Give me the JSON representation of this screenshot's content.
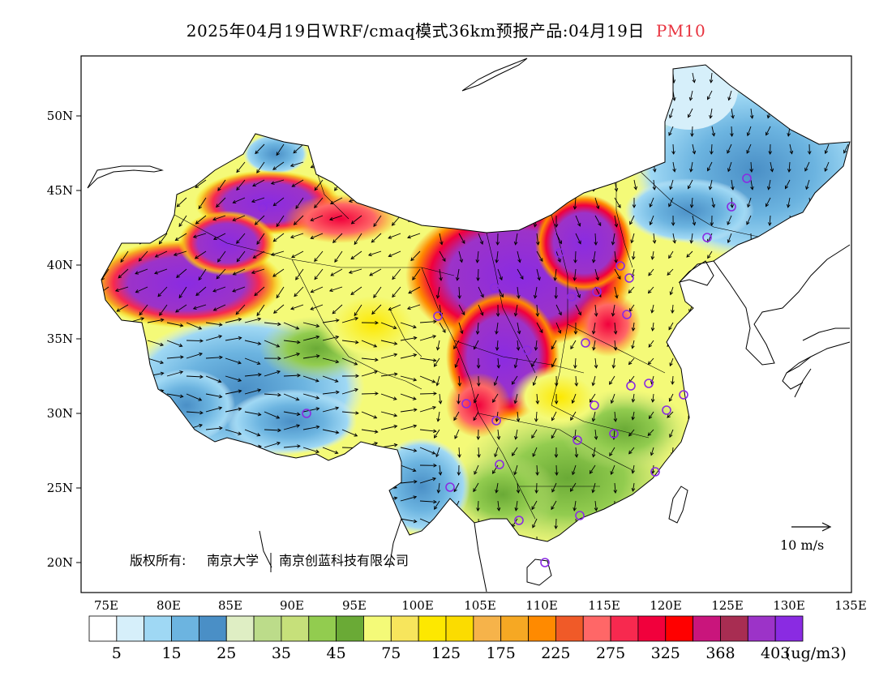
{
  "title": {
    "main": "2025年04月19日WRF/cmaq模式36km预报产品:04月19日",
    "pollutant": "PM10"
  },
  "axes": {
    "lat_labels": [
      "20N",
      "25N",
      "30N",
      "35N",
      "40N",
      "45N",
      "50N"
    ],
    "lon_labels": [
      "75E",
      "80E",
      "85E",
      "90E",
      "95E",
      "100E",
      "105E",
      "110E",
      "115E",
      "120E",
      "125E",
      "130E",
      "135E"
    ]
  },
  "copyright": {
    "prefix": "版权所有:",
    "org1": "南京大学",
    "org2": "南京创蓝科技有限公司"
  },
  "wind_scale": {
    "label": "10 m/s"
  },
  "legend": {
    "colors": [
      "#ffffff",
      "#d6effa",
      "#9fd8f4",
      "#6cb4e0",
      "#4a8fc6",
      "#dfeec4",
      "#bcdc8a",
      "#c6e07a",
      "#92cc4f",
      "#6aaa36",
      "#f4fa78",
      "#f7e55c",
      "#fde800",
      "#fbdc00",
      "#f6b34a",
      "#f6a823",
      "#ff8a00",
      "#f05a28",
      "#ff6767",
      "#f7294f",
      "#f1003c",
      "#ff0000",
      "#c9157c",
      "#a82d52",
      "#9c33c8",
      "#8a2be2"
    ],
    "labels": [
      "5",
      "15",
      "25",
      "35",
      "45",
      "75",
      "125",
      "175",
      "225",
      "275",
      "325",
      "368",
      "403"
    ],
    "unit": "(ug/m3)"
  },
  "stations_color": "#8a2be2"
}
